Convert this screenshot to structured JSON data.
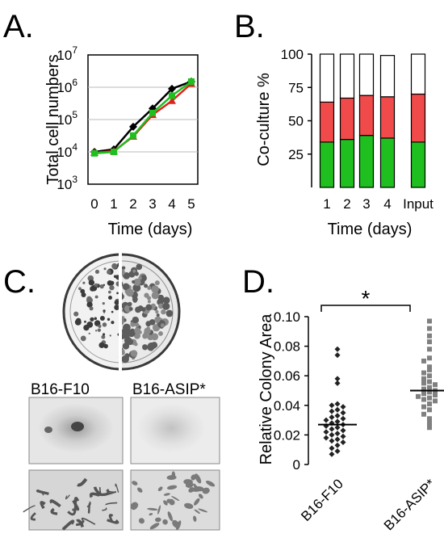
{
  "panels": {
    "a": "A.",
    "b": "B.",
    "c": "C.",
    "d": "D."
  },
  "chart_data": [
    {
      "panel": "A.",
      "type": "line",
      "ylabel": "Total cell numbers",
      "xlabel": "Time (days)",
      "y_scale": "log",
      "ylim": [
        1000,
        10000000
      ],
      "y_tick_labels": [
        {
          "base": "10",
          "exp": "3"
        },
        {
          "base": "10",
          "exp": "4"
        },
        {
          "base": "10",
          "exp": "5"
        },
        {
          "base": "10",
          "exp": "6"
        },
        {
          "base": "10",
          "exp": "7"
        }
      ],
      "x": [
        0,
        1,
        2,
        3,
        4,
        5
      ],
      "grid": "horizontal",
      "series": [
        {
          "color": "#000000",
          "marker": "diamond",
          "values": [
            10000,
            12000,
            60000,
            220000,
            900000,
            1500000
          ]
        },
        {
          "color": "#d9261c",
          "marker": "triangle",
          "values": [
            9500,
            10500,
            30000,
            140000,
            380000,
            1300000
          ]
        },
        {
          "color": "#1fbf1f",
          "marker": "square",
          "values": [
            9000,
            10000,
            32000,
            160000,
            550000,
            1500000
          ]
        }
      ]
    },
    {
      "panel": "B.",
      "type": "bar",
      "stacked": true,
      "ylabel": "Co-culture %",
      "xlabel": "Time (days)",
      "ylim": [
        0,
        100
      ],
      "y_ticks": [
        25,
        50,
        75,
        100
      ],
      "categories": [
        "1",
        "2",
        "3",
        "4",
        "Input"
      ],
      "series": [
        {
          "color": "#1fbf1f",
          "values": [
            34,
            36,
            39,
            37,
            34
          ]
        },
        {
          "color": "#f04a4a",
          "values": [
            30,
            31,
            30,
            31,
            36
          ]
        },
        {
          "color": "#ffffff",
          "values": [
            36,
            33,
            31,
            31,
            30
          ]
        }
      ]
    },
    {
      "panel": "D.",
      "type": "scatter",
      "ylabel": "Relative Colony Area",
      "ylim": [
        0,
        0.1
      ],
      "y_ticks": [
        "0",
        "0.02",
        "0.04",
        "0.06",
        "0.08",
        "0.10"
      ],
      "categories": [
        "B16-F10",
        "B16-ASIP*"
      ],
      "significance": "*",
      "series": [
        {
          "category": "B16-F10",
          "marker": "diamond",
          "color": "#222222",
          "median": 0.027,
          "values": [
            0.078,
            0.074,
            0.058,
            0.055,
            0.041,
            0.04,
            0.039,
            0.037,
            0.036,
            0.035,
            0.033,
            0.032,
            0.031,
            0.03,
            0.029,
            0.028,
            0.027,
            0.026,
            0.025,
            0.024,
            0.023,
            0.022,
            0.021,
            0.02,
            0.019,
            0.018,
            0.017,
            0.016,
            0.015,
            0.013,
            0.011,
            0.009,
            0.007
          ]
        },
        {
          "category": "B16-ASIP*",
          "marker": "square",
          "color": "#808080",
          "median": 0.05,
          "values": [
            0.097,
            0.092,
            0.087,
            0.083,
            0.078,
            0.072,
            0.07,
            0.066,
            0.064,
            0.062,
            0.06,
            0.058,
            0.056,
            0.055,
            0.054,
            0.052,
            0.051,
            0.05,
            0.049,
            0.048,
            0.047,
            0.046,
            0.045,
            0.044,
            0.043,
            0.041,
            0.039,
            0.037,
            0.034,
            0.031,
            0.028,
            0.025
          ]
        }
      ]
    }
  ],
  "panel_c": {
    "left_label": "B16-F10",
    "right_label": "B16-ASIP*"
  }
}
